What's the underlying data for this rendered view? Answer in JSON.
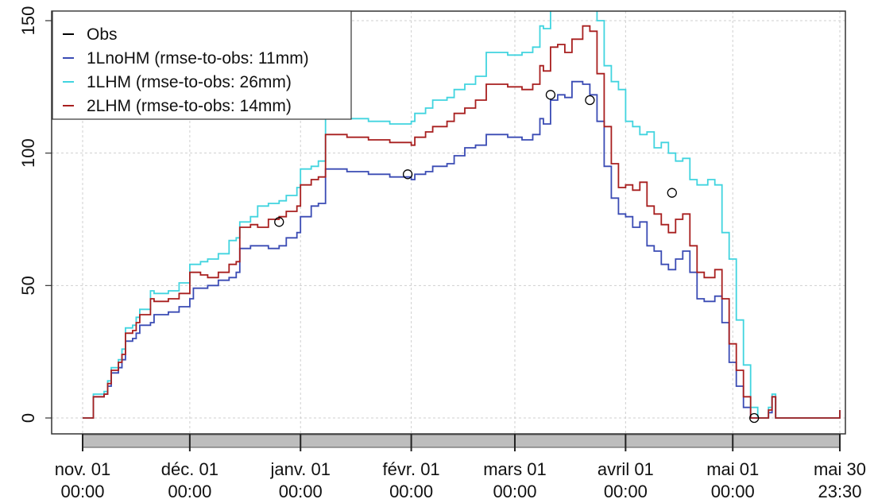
{
  "chart_data": {
    "type": "line",
    "title": "",
    "xlabel": "",
    "ylabel": "",
    "ylim": [
      0,
      150
    ],
    "yticks": [
      0,
      50,
      100,
      150
    ],
    "xlim": [
      "2019-11-01 00:00",
      "2020-05-30 23:30"
    ],
    "xticks": [
      {
        "date": "2019-11-01",
        "line1": "nov. 01",
        "line2": "00:00"
      },
      {
        "date": "2019-12-01",
        "line1": "déc. 01",
        "line2": "00:00"
      },
      {
        "date": "2020-01-01",
        "line1": "janv. 01",
        "line2": "00:00"
      },
      {
        "date": "2020-02-01",
        "line1": "févr. 01",
        "line2": "00:00"
      },
      {
        "date": "2020-03-01",
        "line1": "mars 01",
        "line2": "00:00"
      },
      {
        "date": "2020-04-01",
        "line1": "avril 01",
        "line2": "00:00"
      },
      {
        "date": "2020-05-01",
        "line1": "mai 01",
        "line2": "00:00"
      },
      {
        "date": "2020-05-30 23:30",
        "line1": "mai 30",
        "line2": "23:30"
      }
    ],
    "grid": true,
    "legend_position": "top-left",
    "series": [
      {
        "name": "Obs",
        "color": "#000000",
        "style": "points",
        "points": [
          [
            "2019-12-26",
            74
          ],
          [
            "2020-01-31",
            92
          ],
          [
            "2020-03-11",
            122
          ],
          [
            "2020-03-22",
            120
          ],
          [
            "2020-04-14",
            85
          ],
          [
            "2020-05-07",
            0
          ]
        ]
      },
      {
        "name": "1LnoHM (rmse-to-obs: 11mm)",
        "color": "#3a4bb4",
        "style": "step",
        "points": [
          [
            "2019-11-01",
            0
          ],
          [
            "2019-11-03",
            0
          ],
          [
            "2019-11-04",
            8
          ],
          [
            "2019-11-07",
            9
          ],
          [
            "2019-11-08",
            12
          ],
          [
            "2019-11-09",
            17
          ],
          [
            "2019-11-11",
            19
          ],
          [
            "2019-11-12",
            22
          ],
          [
            "2019-11-13",
            29
          ],
          [
            "2019-11-15",
            30
          ],
          [
            "2019-11-16",
            32
          ],
          [
            "2019-11-17",
            35
          ],
          [
            "2019-11-20",
            36
          ],
          [
            "2019-11-21",
            39
          ],
          [
            "2019-11-25",
            40
          ],
          [
            "2019-11-28",
            42
          ],
          [
            "2019-12-01",
            45
          ],
          [
            "2019-12-02",
            49
          ],
          [
            "2019-12-06",
            50
          ],
          [
            "2019-12-08",
            50
          ],
          [
            "2019-12-09",
            52
          ],
          [
            "2019-12-12",
            53
          ],
          [
            "2019-12-14",
            55
          ],
          [
            "2019-12-15",
            64
          ],
          [
            "2019-12-18",
            65
          ],
          [
            "2019-12-20",
            65
          ],
          [
            "2019-12-23",
            64
          ],
          [
            "2019-12-26",
            65
          ],
          [
            "2019-12-28",
            68
          ],
          [
            "2019-12-31",
            70
          ],
          [
            "2020-01-01",
            76
          ],
          [
            "2020-01-04",
            80
          ],
          [
            "2020-01-06",
            81
          ],
          [
            "2020-01-08",
            94
          ],
          [
            "2020-01-14",
            93
          ],
          [
            "2020-01-20",
            92
          ],
          [
            "2020-01-26",
            91
          ],
          [
            "2020-02-01",
            90
          ],
          [
            "2020-02-02",
            92
          ],
          [
            "2020-02-05",
            93
          ],
          [
            "2020-02-07",
            95
          ],
          [
            "2020-02-11",
            96
          ],
          [
            "2020-02-13",
            99
          ],
          [
            "2020-02-16",
            102
          ],
          [
            "2020-02-19",
            103
          ],
          [
            "2020-02-22",
            107
          ],
          [
            "2020-02-28",
            106
          ],
          [
            "2020-03-03",
            105
          ],
          [
            "2020-03-06",
            107
          ],
          [
            "2020-03-08",
            113
          ],
          [
            "2020-03-09",
            111
          ],
          [
            "2020-03-11",
            120
          ],
          [
            "2020-03-13",
            122
          ],
          [
            "2020-03-15",
            121
          ],
          [
            "2020-03-17",
            127
          ],
          [
            "2020-03-20",
            126
          ],
          [
            "2020-03-22",
            122
          ],
          [
            "2020-03-24",
            112
          ],
          [
            "2020-03-26",
            95
          ],
          [
            "2020-03-28",
            83
          ],
          [
            "2020-03-30",
            77
          ],
          [
            "2020-04-01",
            76
          ],
          [
            "2020-04-03",
            72
          ],
          [
            "2020-04-05",
            74
          ],
          [
            "2020-04-07",
            65
          ],
          [
            "2020-04-09",
            63
          ],
          [
            "2020-04-11",
            58
          ],
          [
            "2020-04-13",
            56
          ],
          [
            "2020-04-15",
            60
          ],
          [
            "2020-04-17",
            63
          ],
          [
            "2020-04-19",
            55
          ],
          [
            "2020-04-21",
            45
          ],
          [
            "2020-04-23",
            44
          ],
          [
            "2020-04-26",
            46
          ],
          [
            "2020-04-28",
            36
          ],
          [
            "2020-04-30",
            21
          ],
          [
            "2020-05-02",
            12
          ],
          [
            "2020-05-04",
            4
          ],
          [
            "2020-05-06",
            0
          ],
          [
            "2020-05-10",
            0
          ],
          [
            "2020-05-11",
            2
          ],
          [
            "2020-05-12",
            8
          ],
          [
            "2020-05-13",
            0
          ],
          [
            "2020-05-30 18:00",
            0
          ],
          [
            "2020-05-30 23:30",
            3
          ]
        ]
      },
      {
        "name": "1LHM (rmse-to-obs: 26mm)",
        "color": "#41d4df",
        "style": "step",
        "points": [
          [
            "2019-11-01",
            0
          ],
          [
            "2019-11-03",
            0
          ],
          [
            "2019-11-04",
            9
          ],
          [
            "2019-11-07",
            10
          ],
          [
            "2019-11-08",
            14
          ],
          [
            "2019-11-09",
            19
          ],
          [
            "2019-11-11",
            22
          ],
          [
            "2019-11-12",
            26
          ],
          [
            "2019-11-13",
            34
          ],
          [
            "2019-11-15",
            35
          ],
          [
            "2019-11-16",
            38
          ],
          [
            "2019-11-17",
            41
          ],
          [
            "2019-11-20",
            48
          ],
          [
            "2019-11-21",
            47
          ],
          [
            "2019-11-25",
            48
          ],
          [
            "2019-11-28",
            51
          ],
          [
            "2019-12-01",
            58
          ],
          [
            "2019-12-04",
            59
          ],
          [
            "2019-12-06",
            60
          ],
          [
            "2019-12-09",
            62
          ],
          [
            "2019-12-12",
            67
          ],
          [
            "2019-12-14",
            68
          ],
          [
            "2019-12-15",
            74
          ],
          [
            "2019-12-18",
            76
          ],
          [
            "2019-12-20",
            80
          ],
          [
            "2019-12-23",
            81
          ],
          [
            "2019-12-26",
            82
          ],
          [
            "2019-12-28",
            84
          ],
          [
            "2019-12-31",
            87
          ],
          [
            "2020-01-01",
            94
          ],
          [
            "2020-01-04",
            95
          ],
          [
            "2020-01-06",
            97
          ],
          [
            "2020-01-08",
            114
          ],
          [
            "2020-01-14",
            113
          ],
          [
            "2020-01-20",
            112
          ],
          [
            "2020-01-26",
            111
          ],
          [
            "2020-02-01",
            112
          ],
          [
            "2020-02-02",
            115
          ],
          [
            "2020-02-05",
            117
          ],
          [
            "2020-02-07",
            120
          ],
          [
            "2020-02-11",
            121
          ],
          [
            "2020-02-13",
            124
          ],
          [
            "2020-02-16",
            126
          ],
          [
            "2020-02-19",
            129
          ],
          [
            "2020-02-22",
            138
          ],
          [
            "2020-02-28",
            137
          ],
          [
            "2020-03-03",
            138
          ],
          [
            "2020-03-06",
            140
          ],
          [
            "2020-03-08",
            148
          ],
          [
            "2020-03-09",
            147
          ],
          [
            "2020-03-11",
            155
          ],
          [
            "2020-03-13",
            157
          ],
          [
            "2020-03-15",
            156
          ],
          [
            "2020-03-17",
            158
          ],
          [
            "2020-03-20",
            162
          ],
          [
            "2020-03-24",
            150
          ],
          [
            "2020-03-26",
            133
          ],
          [
            "2020-03-28",
            127
          ],
          [
            "2020-03-30",
            124
          ],
          [
            "2020-04-01",
            112
          ],
          [
            "2020-04-03",
            110
          ],
          [
            "2020-04-05",
            107
          ],
          [
            "2020-04-07",
            108
          ],
          [
            "2020-04-09",
            102
          ],
          [
            "2020-04-11",
            104
          ],
          [
            "2020-04-13",
            100
          ],
          [
            "2020-04-15",
            97
          ],
          [
            "2020-04-17",
            98
          ],
          [
            "2020-04-19",
            90
          ],
          [
            "2020-04-21",
            88
          ],
          [
            "2020-04-24",
            90
          ],
          [
            "2020-04-26",
            88
          ],
          [
            "2020-04-28",
            70
          ],
          [
            "2020-04-30",
            60
          ],
          [
            "2020-05-02",
            37
          ],
          [
            "2020-05-04",
            20
          ],
          [
            "2020-05-06",
            4
          ],
          [
            "2020-05-08",
            0
          ],
          [
            "2020-05-10",
            0
          ],
          [
            "2020-05-11",
            4
          ],
          [
            "2020-05-12",
            9
          ],
          [
            "2020-05-13",
            0
          ],
          [
            "2020-05-30 18:00",
            0
          ],
          [
            "2020-05-30 23:30",
            3
          ]
        ]
      },
      {
        "name": "2LHM (rmse-to-obs: 14mm)",
        "color": "#a81f1f",
        "style": "step",
        "points": [
          [
            "2019-11-01",
            0
          ],
          [
            "2019-11-03",
            0
          ],
          [
            "2019-11-04",
            8
          ],
          [
            "2019-11-07",
            9
          ],
          [
            "2019-11-08",
            13
          ],
          [
            "2019-11-09",
            18
          ],
          [
            "2019-11-11",
            21
          ],
          [
            "2019-11-12",
            24
          ],
          [
            "2019-11-13",
            32
          ],
          [
            "2019-11-15",
            33
          ],
          [
            "2019-11-16",
            36
          ],
          [
            "2019-11-17",
            39
          ],
          [
            "2019-11-20",
            45
          ],
          [
            "2019-11-21",
            44
          ],
          [
            "2019-11-25",
            45
          ],
          [
            "2019-11-28",
            47
          ],
          [
            "2019-12-01",
            55
          ],
          [
            "2019-12-04",
            54
          ],
          [
            "2019-12-06",
            53
          ],
          [
            "2019-12-09",
            55
          ],
          [
            "2019-12-12",
            58
          ],
          [
            "2019-12-14",
            59
          ],
          [
            "2019-12-15",
            72
          ],
          [
            "2019-12-18",
            73
          ],
          [
            "2019-12-20",
            72
          ],
          [
            "2019-12-23",
            75
          ],
          [
            "2019-12-26",
            76
          ],
          [
            "2019-12-28",
            78
          ],
          [
            "2019-12-31",
            80
          ],
          [
            "2020-01-01",
            88
          ],
          [
            "2020-01-04",
            90
          ],
          [
            "2020-01-06",
            91
          ],
          [
            "2020-01-08",
            107
          ],
          [
            "2020-01-14",
            106
          ],
          [
            "2020-01-20",
            105
          ],
          [
            "2020-01-26",
            104
          ],
          [
            "2020-02-01",
            103
          ],
          [
            "2020-02-02",
            106
          ],
          [
            "2020-02-05",
            108
          ],
          [
            "2020-02-07",
            110
          ],
          [
            "2020-02-11",
            112
          ],
          [
            "2020-02-13",
            115
          ],
          [
            "2020-02-16",
            117
          ],
          [
            "2020-02-19",
            120
          ],
          [
            "2020-02-22",
            126
          ],
          [
            "2020-02-28",
            125
          ],
          [
            "2020-03-03",
            124
          ],
          [
            "2020-03-06",
            126
          ],
          [
            "2020-03-08",
            133
          ],
          [
            "2020-03-09",
            131
          ],
          [
            "2020-03-11",
            140
          ],
          [
            "2020-03-13",
            141
          ],
          [
            "2020-03-15",
            138
          ],
          [
            "2020-03-17",
            143
          ],
          [
            "2020-03-20",
            148
          ],
          [
            "2020-03-22",
            146
          ],
          [
            "2020-03-24",
            130
          ],
          [
            "2020-03-26",
            110
          ],
          [
            "2020-03-28",
            96
          ],
          [
            "2020-03-30",
            87
          ],
          [
            "2020-04-01",
            88
          ],
          [
            "2020-04-03",
            86
          ],
          [
            "2020-04-05",
            89
          ],
          [
            "2020-04-07",
            80
          ],
          [
            "2020-04-09",
            77
          ],
          [
            "2020-04-11",
            73
          ],
          [
            "2020-04-13",
            70
          ],
          [
            "2020-04-15",
            75
          ],
          [
            "2020-04-17",
            77
          ],
          [
            "2020-04-19",
            65
          ],
          [
            "2020-04-21",
            55
          ],
          [
            "2020-04-23",
            53
          ],
          [
            "2020-04-26",
            56
          ],
          [
            "2020-04-28",
            45
          ],
          [
            "2020-04-30",
            28
          ],
          [
            "2020-05-02",
            18
          ],
          [
            "2020-05-04",
            8
          ],
          [
            "2020-05-06",
            0
          ],
          [
            "2020-05-10",
            0
          ],
          [
            "2020-05-11",
            3
          ],
          [
            "2020-05-12",
            8
          ],
          [
            "2020-05-13",
            0
          ],
          [
            "2020-05-30 18:00",
            0
          ],
          [
            "2020-05-30 23:30",
            3
          ]
        ]
      }
    ]
  }
}
